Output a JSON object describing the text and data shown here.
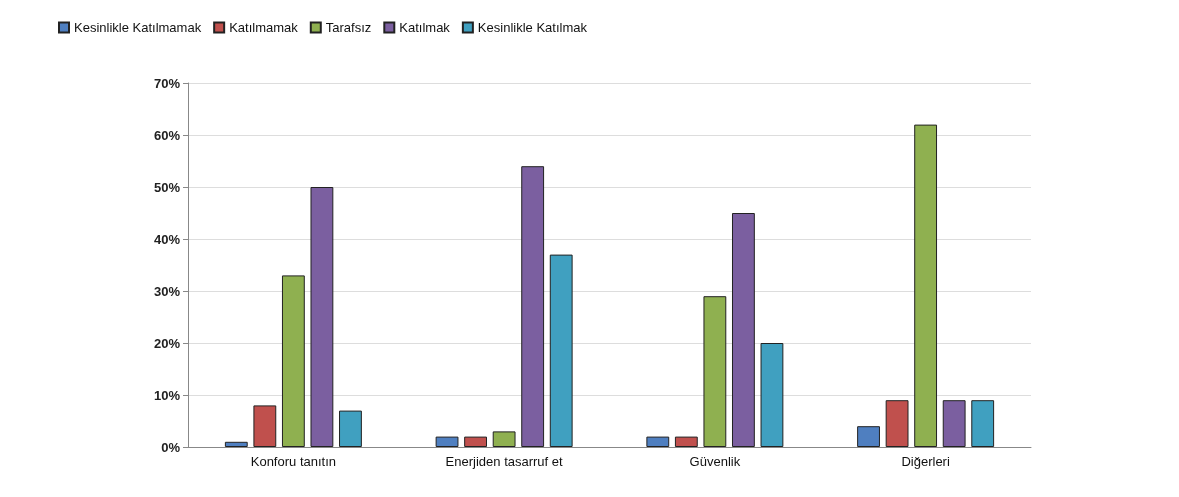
{
  "chart_data": {
    "type": "bar",
    "categories": [
      "Konforu tanıtın",
      "Enerjiden tasarruf et",
      "Güvenlik",
      "Diğerleri"
    ],
    "series": [
      {
        "name": "Kesinlikle Katılmamak",
        "color": "#4f7fc0",
        "values": [
          1,
          2,
          2,
          4
        ]
      },
      {
        "name": "Katılmamak",
        "color": "#c0504d",
        "values": [
          8,
          2,
          2,
          9
        ]
      },
      {
        "name": "Tarafsız",
        "color": "#8fb050",
        "values": [
          33,
          3,
          29,
          62
        ]
      },
      {
        "name": "Katılmak",
        "color": "#7b5fa0",
        "values": [
          50,
          54,
          45,
          9
        ]
      },
      {
        "name": "Kesinlikle Katılmak",
        "color": "#40a0c0",
        "values": [
          7,
          37,
          20,
          9
        ]
      }
    ],
    "ylim": [
      0,
      70
    ],
    "yticks": [
      {
        "value": 0,
        "label": "0%"
      },
      {
        "value": 10,
        "label": "10%"
      },
      {
        "value": 20,
        "label": "20%"
      },
      {
        "value": 30,
        "label": "30%"
      },
      {
        "value": 40,
        "label": "40%"
      },
      {
        "value": 50,
        "label": "50%"
      },
      {
        "value": 60,
        "label": "60%"
      },
      {
        "value": 70,
        "label": "70%"
      }
    ],
    "grid": "y",
    "legend": "top left"
  }
}
